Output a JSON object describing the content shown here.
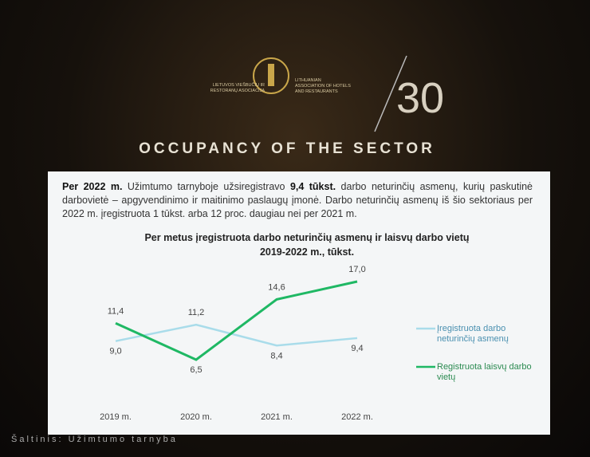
{
  "header": {
    "logo_left": "LIETUVOS VIEŠBUČIŲ IR RESTORANŲ ASOCIACIJA",
    "logo_right": "LITHUANIAN ASSOCIATION OF HOTELS AND RESTAURANTS",
    "anniversary": "30",
    "title": "OCCUPANCY OF THE SECTOR"
  },
  "text": {
    "parts": [
      "Per 2022 m.",
      " Užimtumo tarnyboje užsiregistravo ",
      "9,4 tūkst.",
      " darbo neturinčių asmenų, kurių paskutinė darbovietė – apgyvendinimo ir maitinimo paslaugų įmonė. Darbo neturinčių asmenų iš šio sektoriaus per 2022 m. įregistruota 1 tūkst. arba 12 proc. daugiau nei per 2021 m."
    ]
  },
  "chart_data": {
    "type": "line",
    "title": "Per metus įregistruota darbo neturinčių asmenų ir laisvų darbo vietų",
    "subtitle": "2019-2022 m., tūkst.",
    "categories": [
      "2019 m.",
      "2020 m.",
      "2021 m.",
      "2022 m."
    ],
    "series": [
      {
        "name": "Įregistruota darbo neturinčių asmenų",
        "color": "#a9dcea",
        "values": [
          9.0,
          11.2,
          8.4,
          9.4
        ],
        "value_labels": [
          "9,0",
          "11,2",
          "8,4",
          "9,4"
        ]
      },
      {
        "name": "Registruota laisvų darbo vietų",
        "color": "#1fb864",
        "values": [
          11.4,
          6.5,
          14.6,
          17.0
        ],
        "value_labels": [
          "11,4",
          "6,5",
          "14,6",
          "17,0"
        ]
      }
    ],
    "legend": "right"
  },
  "footer": {
    "source": "Šaltinis: Užimtumo tarnyba"
  }
}
